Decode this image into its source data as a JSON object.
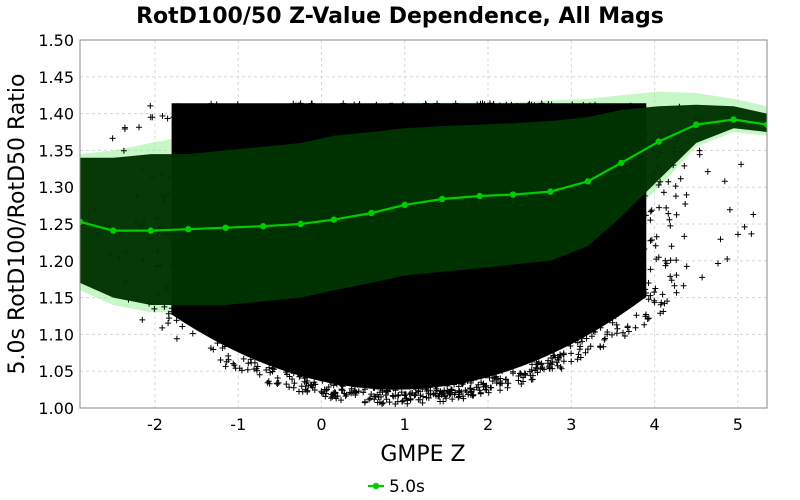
{
  "chart_data": {
    "type": "scatter",
    "title": "RotD100/50 Z-Value Dependence, All Mags",
    "xlabel": "GMPE Z",
    "ylabel": "5.0s RotD100/RotD50 Ratio",
    "xlim": [
      -2.9,
      5.35
    ],
    "ylim": [
      1.0,
      1.5
    ],
    "x_ticks": [
      -2,
      -1,
      0,
      1,
      2,
      3,
      4,
      5
    ],
    "x_tick_labels": [
      "-2",
      "-1",
      "0",
      "1",
      "2",
      "3",
      "4",
      "5"
    ],
    "y_ticks": [
      1.0,
      1.05,
      1.1,
      1.15,
      1.2,
      1.25,
      1.3,
      1.35,
      1.4,
      1.45,
      1.5
    ],
    "y_tick_labels": [
      "1.00",
      "1.05",
      "1.10",
      "1.15",
      "1.20",
      "1.25",
      "1.30",
      "1.35",
      "1.40",
      "1.45",
      "1.50"
    ],
    "grid": true,
    "legend_position": "bottom-center",
    "series": [
      {
        "name": "5.0s",
        "color": "#00cc00",
        "x": [
          -2.9,
          -2.5,
          -2.05,
          -1.6,
          -1.15,
          -0.7,
          -0.25,
          0.15,
          0.6,
          1.0,
          1.45,
          1.9,
          2.3,
          2.75,
          3.2,
          3.6,
          4.05,
          4.5,
          4.95,
          5.35
        ],
        "y": [
          1.253,
          1.241,
          1.241,
          1.243,
          1.245,
          1.247,
          1.25,
          1.256,
          1.265,
          1.276,
          1.284,
          1.288,
          1.29,
          1.294,
          1.308,
          1.333,
          1.362,
          1.385,
          1.392,
          1.385
        ]
      }
    ],
    "inner_band": {
      "x": [
        -2.9,
        -2.5,
        -2.05,
        -1.6,
        -1.15,
        -0.7,
        -0.25,
        0.15,
        0.6,
        1.0,
        1.45,
        1.9,
        2.3,
        2.75,
        3.2,
        3.6,
        4.05,
        4.5,
        4.95,
        5.35
      ],
      "lower": [
        1.17,
        1.15,
        1.14,
        1.14,
        1.14,
        1.145,
        1.15,
        1.16,
        1.17,
        1.18,
        1.185,
        1.19,
        1.195,
        1.2,
        1.22,
        1.26,
        1.31,
        1.36,
        1.38,
        1.375
      ],
      "upper": [
        1.34,
        1.34,
        1.345,
        1.345,
        1.35,
        1.355,
        1.36,
        1.37,
        1.375,
        1.38,
        1.383,
        1.385,
        1.387,
        1.39,
        1.395,
        1.405,
        1.41,
        1.412,
        1.41,
        1.4
      ],
      "color": "#003300"
    },
    "outer_band": {
      "x": [
        -2.9,
        -2.5,
        -2.05,
        -1.6,
        -1.15,
        -0.7,
        -0.25,
        0.15,
        0.6,
        1.0,
        1.45,
        1.9,
        2.3,
        2.75,
        3.2,
        3.6,
        4.05,
        4.5,
        4.95,
        5.35
      ],
      "lower": [
        1.16,
        1.14,
        1.13,
        1.13,
        1.13,
        1.135,
        1.14,
        1.15,
        1.16,
        1.17,
        1.175,
        1.18,
        1.185,
        1.19,
        1.21,
        1.25,
        1.3,
        1.355,
        1.375,
        1.37
      ],
      "upper": [
        1.345,
        1.35,
        1.36,
        1.37,
        1.38,
        1.39,
        1.4,
        1.405,
        1.41,
        1.415,
        1.415,
        1.415,
        1.415,
        1.418,
        1.42,
        1.425,
        1.43,
        1.428,
        1.42,
        1.41
      ],
      "color": "#99ee99"
    },
    "scatter_cloud": {
      "description_free": true,
      "marker": "+",
      "color": "#000000",
      "x_range": [
        -2.8,
        5.2
      ],
      "y_max": 1.414,
      "y_floor": 1.005
    }
  }
}
